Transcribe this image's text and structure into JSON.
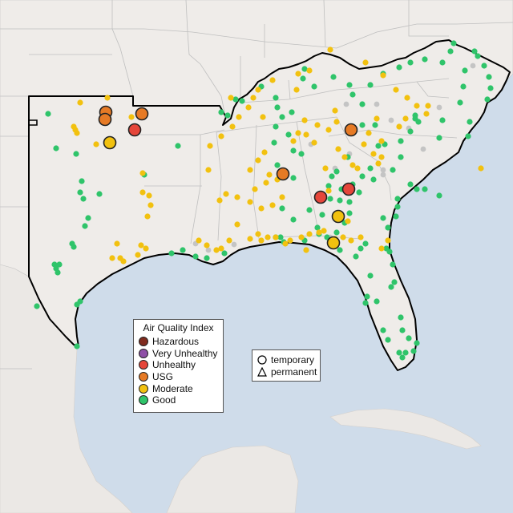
{
  "map": {
    "colors": {
      "land": "#efece9",
      "land_foreign": "#ebe8e5",
      "water": "#cfdcea",
      "state_border": "#bcbcbc",
      "region_outline": "#000000"
    }
  },
  "legend_aqi": {
    "title": "Air Quality Index",
    "items": [
      {
        "label": "Hazardous",
        "color": "#7f2b1e"
      },
      {
        "label": "Very Unhealthy",
        "color": "#8e4fa6"
      },
      {
        "label": "Unhealthy",
        "color": "#e5463a"
      },
      {
        "label": "USG",
        "color": "#e67a25"
      },
      {
        "label": "Moderate",
        "color": "#f2c10f"
      },
      {
        "label": "Good",
        "color": "#2fc46a"
      }
    ]
  },
  "legend_shape": {
    "items": [
      {
        "label": "temporary",
        "icon": "circle-icon"
      },
      {
        "label": "permanent",
        "icon": "triangle-icon"
      }
    ]
  }
}
